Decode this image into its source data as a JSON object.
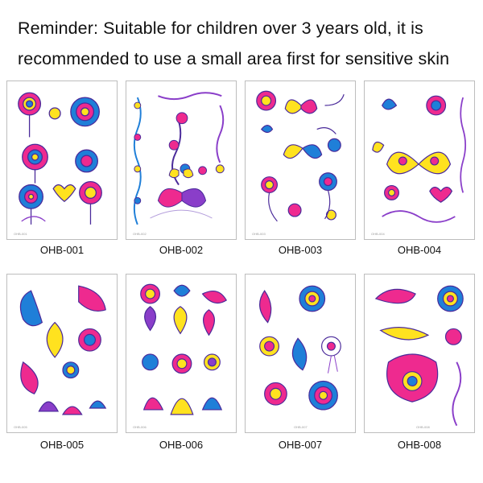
{
  "reminder": {
    "line1": "Reminder: Suitable for children over 3 years old, it is",
    "line2": "recommended to use a small area first for sensitive skin"
  },
  "products": [
    {
      "code": "OHB-001",
      "small": "OHB-001",
      "theme": "roses"
    },
    {
      "code": "OHB-002",
      "small": "OHB-002",
      "theme": "vines-butterfly"
    },
    {
      "code": "OHB-003",
      "small": "OHB-003",
      "theme": "roses-butterflies"
    },
    {
      "code": "OHB-004",
      "small": "OHB-004",
      "theme": "butterfly-hearts"
    },
    {
      "code": "OHB-005",
      "small": "OHB-005",
      "theme": "henna-paisley"
    },
    {
      "code": "OHB-006",
      "small": "OHB-006",
      "theme": "henna-lotus"
    },
    {
      "code": "OHB-007",
      "small": "OHB-007",
      "theme": "henna-mandala"
    },
    {
      "code": "OHB-008",
      "small": "OHB-008",
      "theme": "henna-paisley-mandala"
    }
  ],
  "palette": {
    "pink": "#ee2a8f",
    "blue": "#1f7fd8",
    "yellow": "#ffe21f",
    "purple": "#4a2a9a",
    "violet": "#8a3ec9"
  }
}
